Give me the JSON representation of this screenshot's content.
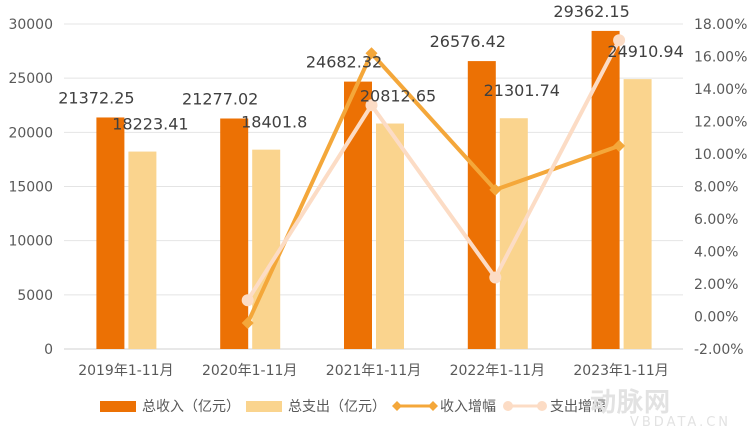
{
  "chart_data": {
    "type": "bar+line",
    "title": "",
    "categories": [
      "2019年1-11月",
      "2020年1-11月",
      "2021年1-11月",
      "2022年1-11月",
      "2023年1-11月"
    ],
    "series": [
      {
        "name": "总收入（亿元）",
        "type": "bar",
        "axis": "left",
        "color": "#EC7104",
        "values": [
          21372.25,
          21277.02,
          24682.32,
          26576.42,
          29362.15
        ],
        "labels": [
          "21372.25",
          "21277.02",
          "24682.32",
          "26576.42",
          "29362.15"
        ]
      },
      {
        "name": "总支出（亿元）",
        "type": "bar",
        "axis": "left",
        "color": "#FAD48E",
        "values": [
          18223.41,
          18401.8,
          20812.65,
          21301.74,
          24910.94
        ],
        "labels": [
          "18223.41",
          "18401.8",
          "20812.65",
          "21301.74",
          "24910.94"
        ]
      },
      {
        "name": "收入增幅",
        "type": "line",
        "axis": "right",
        "color": "#F4A73A",
        "marker": "diamond",
        "values": [
          null,
          -0.4,
          16.2,
          7.8,
          10.5
        ]
      },
      {
        "name": "支出增幅",
        "type": "line",
        "axis": "right",
        "color": "#FCDCC5",
        "marker": "circle",
        "values": [
          null,
          1.0,
          13.0,
          2.4,
          17.0
        ]
      }
    ],
    "left_axis": {
      "ylim": [
        0,
        30000
      ],
      "ticks": [
        "0",
        "5000",
        "10000",
        "15000",
        "20000",
        "25000",
        "30000"
      ]
    },
    "right_axis": {
      "ylim": [
        -2,
        18
      ],
      "ticks": [
        "-2.00%",
        "0.00%",
        "2.00%",
        "4.00%",
        "6.00%",
        "8.00%",
        "10.00%",
        "12.00%",
        "14.00%",
        "16.00%",
        "18.00%"
      ]
    },
    "grid": true,
    "legend_position": "bottom"
  },
  "legend": {
    "items": [
      "总收入（亿元）",
      "总支出（亿元）",
      "收入增幅",
      "支出增幅"
    ]
  },
  "watermark": {
    "main": "动脉网",
    "sub": "VBDATA.CN"
  }
}
